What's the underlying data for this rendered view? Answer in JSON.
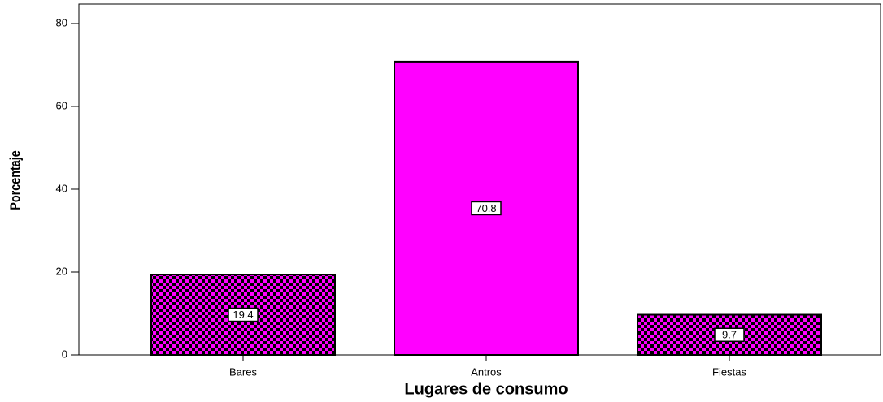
{
  "chart_data": {
    "type": "bar",
    "x_label": "Lugares de consumo",
    "y_label": "Porcentaje",
    "categories": [
      "Bares",
      "Antros",
      "Fiestas"
    ],
    "values": [
      19.4,
      70.8,
      9.7
    ],
    "color": "#ff00ff",
    "bar_patterns": [
      "checker",
      "solid",
      "checker"
    ],
    "ylim": [
      0,
      84.7
    ],
    "yticks": [
      0,
      20,
      40,
      60,
      80
    ],
    "grid": false
  }
}
